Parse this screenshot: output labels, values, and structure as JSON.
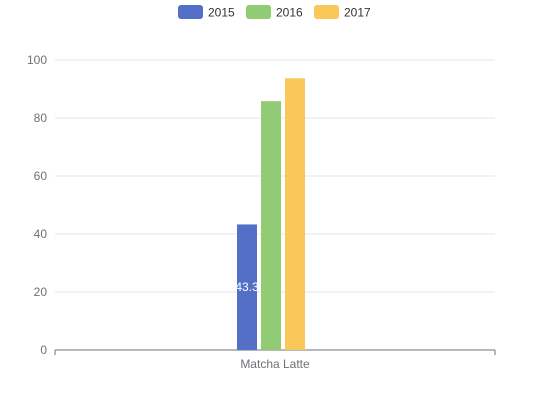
{
  "chart_data": {
    "type": "bar",
    "categories": [
      "Matcha Latte"
    ],
    "series": [
      {
        "name": "2015",
        "values": [
          43.3
        ],
        "color": "#5470c6"
      },
      {
        "name": "2016",
        "values": [
          85.8
        ],
        "color": "#91cc75"
      },
      {
        "name": "2017",
        "values": [
          93.7
        ],
        "color": "#fac858"
      }
    ],
    "data_labels": [
      {
        "series": 0,
        "category": 0,
        "text": "43.3"
      }
    ],
    "y_ticks": [
      "0",
      "20",
      "40",
      "60",
      "80",
      "100"
    ],
    "ylim": [
      0,
      100
    ],
    "grid": true,
    "legend": "top-center"
  }
}
